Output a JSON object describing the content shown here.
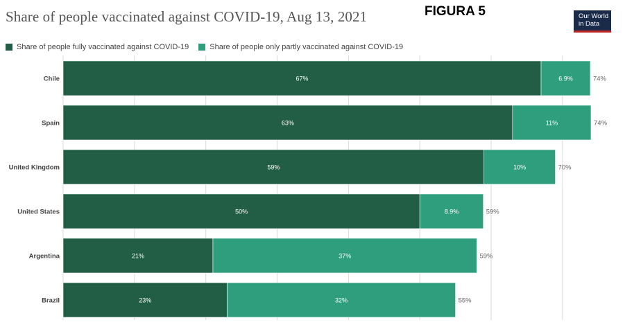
{
  "header": {
    "title": "Share of people vaccinated against COVID-19, Aug 13, 2021",
    "figure_label": "FIGURA 5",
    "logo_line1": "Our World",
    "logo_line2": "in Data"
  },
  "colors": {
    "fully": "#225e45",
    "partly": "#2e9e7c",
    "grid": "#d9d9d9",
    "label_inside": "#ffffff",
    "label_total": "#666666",
    "category": "#444444"
  },
  "chart_data": {
    "type": "bar",
    "orientation": "horizontal",
    "stacked": true,
    "title": "Share of people vaccinated against COVID-19, Aug 13, 2021",
    "categories": [
      "Chile",
      "Spain",
      "United Kingdom",
      "United States",
      "Argentina",
      "Brazil"
    ],
    "series": [
      {
        "name": "Share of people fully vaccinated against COVID-19",
        "values": [
          67,
          63,
          59,
          50,
          21,
          23
        ],
        "labels": [
          "67%",
          "63%",
          "59%",
          "50%",
          "21%",
          "23%"
        ]
      },
      {
        "name": "Share of people only partly vaccinated against COVID-19",
        "values": [
          6.9,
          11,
          10,
          8.9,
          37,
          32
        ],
        "labels": [
          "6.9%",
          "11%",
          "10%",
          "8.9%",
          "37%",
          "32%"
        ]
      }
    ],
    "totals": [
      "74%",
      "74%",
      "70%",
      "59%",
      "59%",
      "55%"
    ],
    "xlim": [
      0,
      74
    ],
    "grid": true,
    "legend_position": "top-left"
  }
}
